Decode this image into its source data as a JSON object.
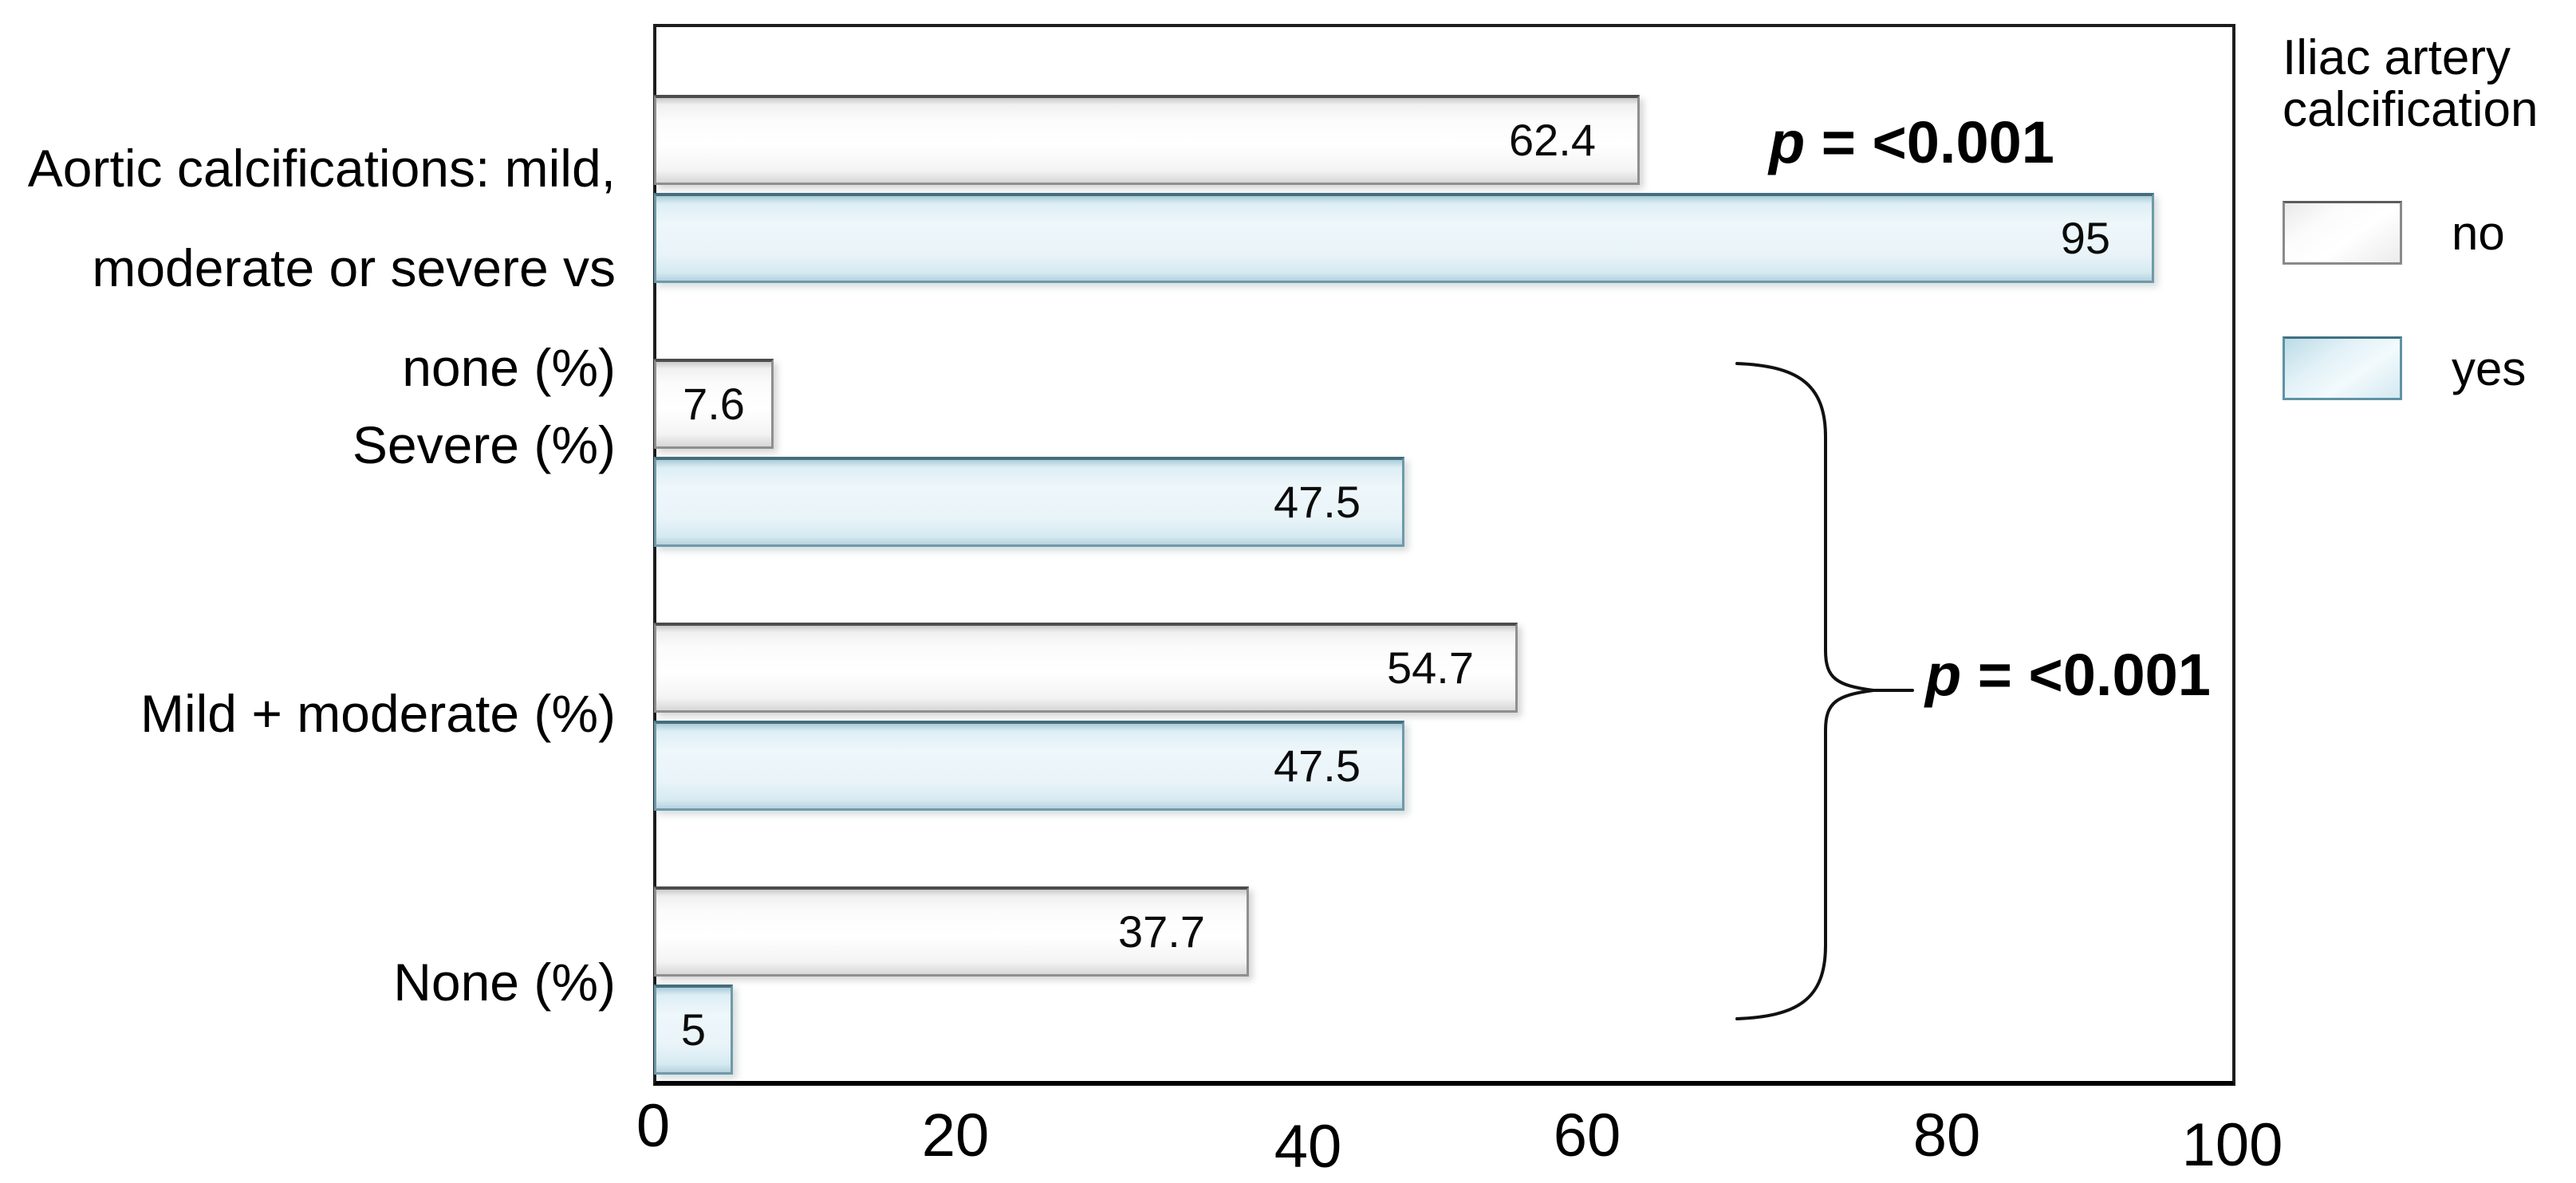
{
  "chart_data": {
    "type": "bar",
    "orientation": "horizontal",
    "title": "",
    "xlabel": "",
    "ylabel": "",
    "xlim": [
      0,
      100
    ],
    "x_ticks": [
      "0",
      "20",
      "40",
      "60",
      "80",
      "100"
    ],
    "grid": false,
    "categories": [
      "Aortic calcifications: mild, moderate or severe vs none (%)",
      "Severe (%)",
      "Mild + moderate (%)",
      "None (%)"
    ],
    "category_lines": [
      [
        "Aortic calcifications: mild,",
        "moderate or severe vs",
        "none (%)"
      ],
      [
        "Severe (%)"
      ],
      [
        "Mild + moderate (%)"
      ],
      [
        "None (%)"
      ]
    ],
    "series": [
      {
        "name": "no",
        "values": [
          62.4,
          7.6,
          54.7,
          37.7
        ],
        "labels": [
          "62.4",
          "7.6",
          "54.7",
          "37.7"
        ]
      },
      {
        "name": "yes",
        "values": [
          95,
          47.5,
          47.5,
          5
        ],
        "labels": [
          "95",
          "47.5",
          "47.5",
          "5"
        ]
      }
    ],
    "legend": {
      "title_lines": [
        "Iliac artery",
        "calcification"
      ],
      "position": "right",
      "items": [
        "no",
        "yes"
      ]
    },
    "annotations": [
      {
        "label_p": "p",
        "label_rest": " = <0.001",
        "target": "Aortic calcifications group",
        "brace": false
      },
      {
        "label_p": "p",
        "label_rest": " = <0.001",
        "target": "Severe / Mild + moderate / None groups",
        "brace": true
      }
    ]
  },
  "colors": {
    "bar_no_face": "#fbfbfb",
    "bar_no_border": "#8f8f8f",
    "bar_yes_face": "#e9f4f9",
    "bar_yes_border": "#6f9aa9",
    "axis": "#000000",
    "text": "#000000"
  }
}
